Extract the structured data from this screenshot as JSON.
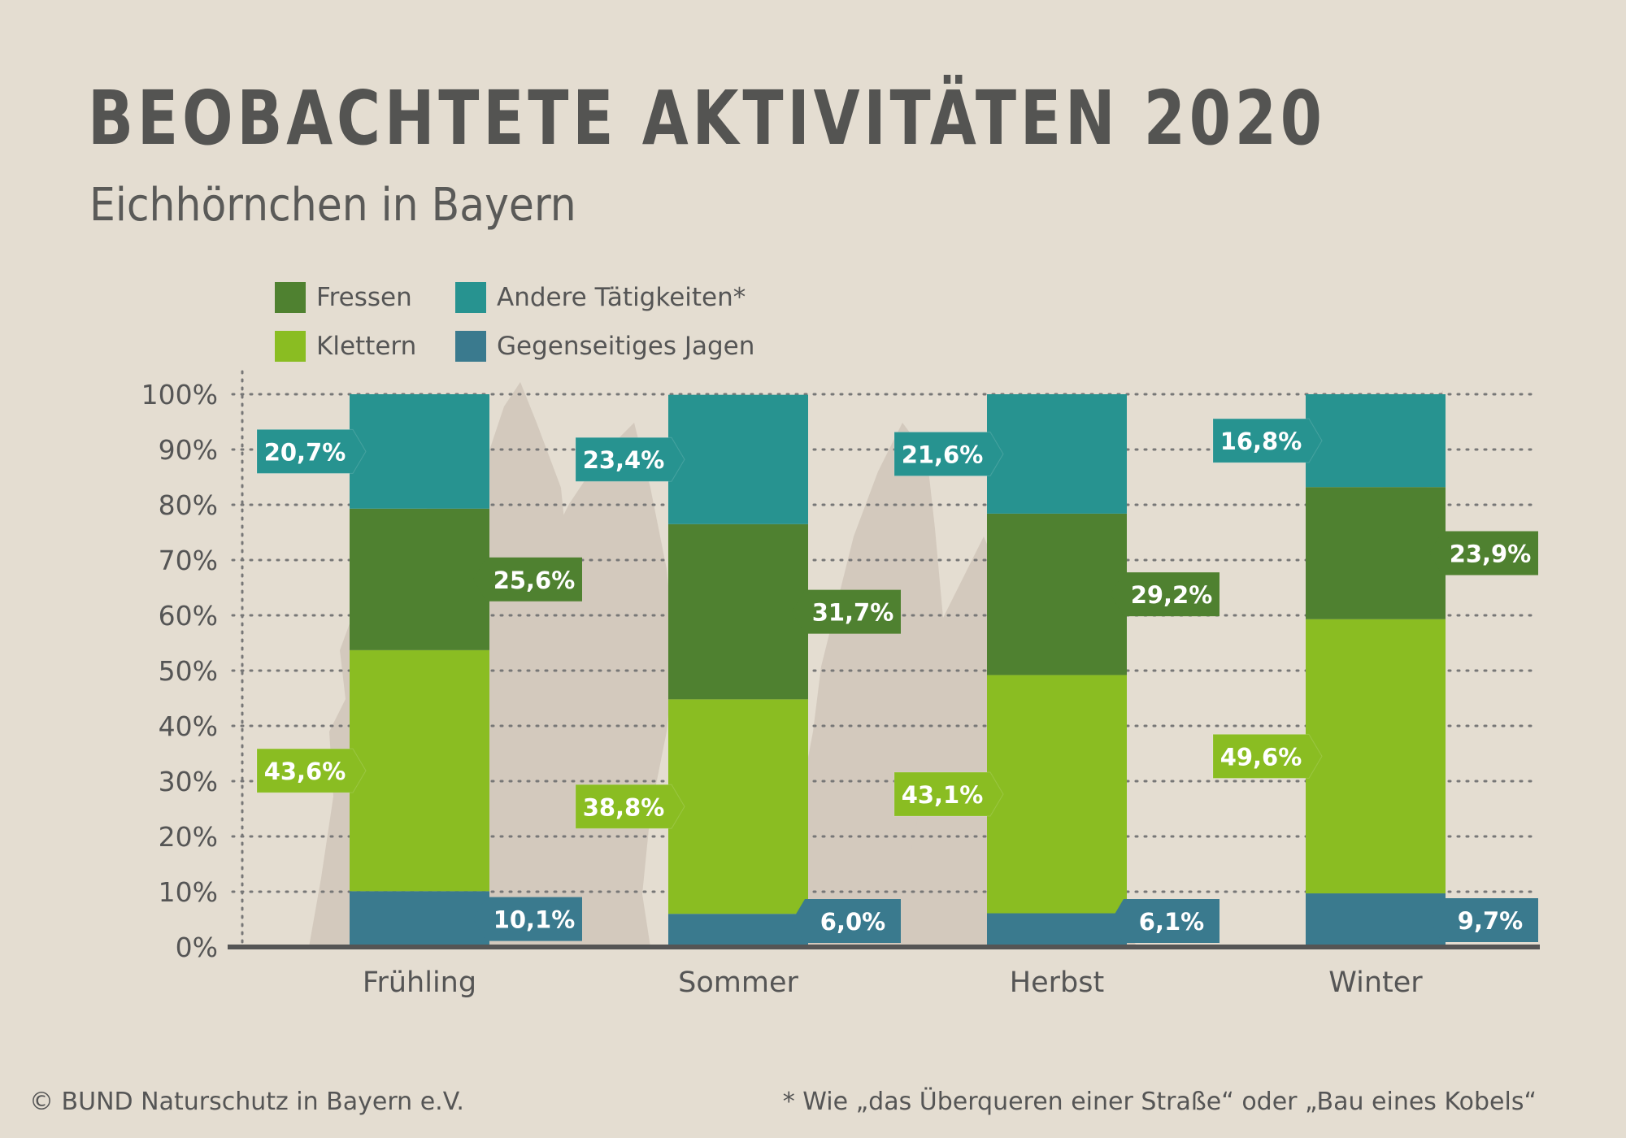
{
  "title": "BEOBACHTETE AKTIVITÄTEN 2020",
  "subtitle": "Eichhörnchen in Bayern",
  "legend": [
    {
      "label": "Fressen",
      "color": "#4f8130"
    },
    {
      "label": "Andere Tätigkeiten*",
      "color": "#279390"
    },
    {
      "label": "Klettern",
      "color": "#8abd22"
    },
    {
      "label": "Gegenseitiges Jagen",
      "color": "#3a7a8e"
    }
  ],
  "chart_data": {
    "type": "bar",
    "stacked": true,
    "categories": [
      "Frühling",
      "Sommer",
      "Herbst",
      "Winter"
    ],
    "y_ticks": [
      "0%",
      "10%",
      "20%",
      "30%",
      "40%",
      "50%",
      "60%",
      "70%",
      "80%",
      "90%",
      "100%"
    ],
    "ylim": [
      0,
      100
    ],
    "grid": true,
    "series": [
      {
        "name": "Gegenseitiges Jagen",
        "color": "#3a7a8e",
        "values": [
          10.1,
          6.0,
          6.1,
          9.7
        ],
        "labels": [
          "10,1%",
          "6,0%",
          "6,1%",
          "9,7%"
        ]
      },
      {
        "name": "Klettern",
        "color": "#8abd22",
        "values": [
          43.6,
          38.8,
          43.1,
          49.6
        ],
        "labels": [
          "43,6%",
          "38,8%",
          "43,1%",
          "49,6%"
        ]
      },
      {
        "name": "Fressen",
        "color": "#4f8130",
        "values": [
          25.6,
          31.7,
          29.2,
          23.9
        ],
        "labels": [
          "25,6%",
          "31,7%",
          "29,2%",
          "23,9%"
        ]
      },
      {
        "name": "Andere Tätigkeiten*",
        "color": "#279390",
        "values": [
          20.7,
          23.4,
          21.6,
          16.8
        ],
        "labels": [
          "20,7%",
          "23,4%",
          "21,6%",
          "16,8%"
        ]
      }
    ]
  },
  "footer": {
    "copyright": "© BUND Naturschutz in Bayern e.V.",
    "note": "* Wie „das Überqueren einer Straße“ oder „Bau eines Kobels“"
  }
}
